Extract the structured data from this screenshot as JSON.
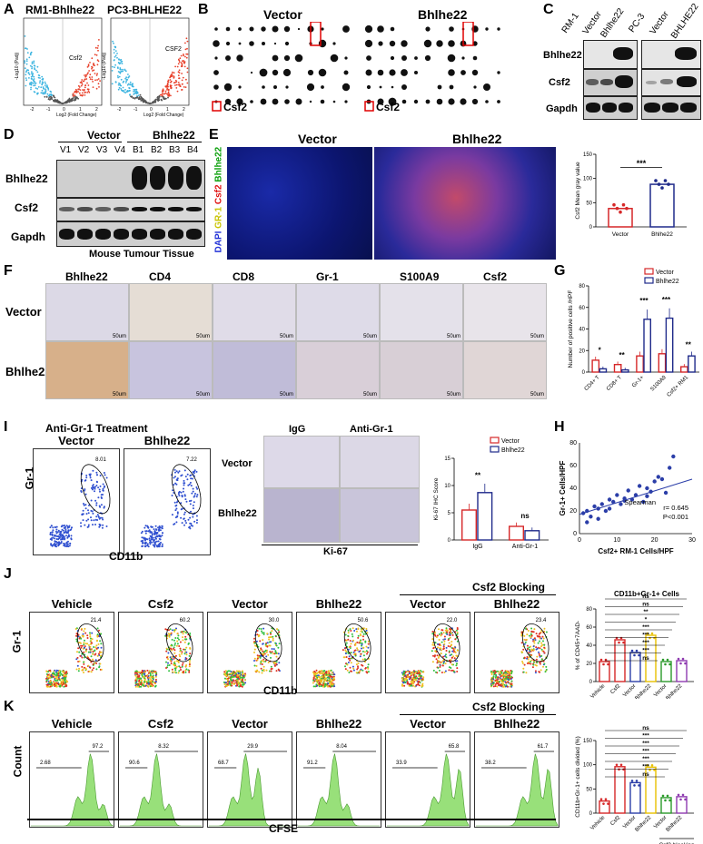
{
  "panels": {
    "A": {
      "label": "A",
      "title1": "RM1-Bhlhe22",
      "title2": "PC3-BHLHE22",
      "gene1": "Csf2",
      "gene2": "CSF2",
      "xlab": "Log2 (Fold Change)",
      "ylab": "-Log10 (Padj)",
      "xticks": [
        "-2",
        "-1",
        "0",
        "1",
        "2"
      ]
    },
    "B": {
      "label": "B",
      "title1": "Vector",
      "title2": "Bhlhe22",
      "key1": "Csf2",
      "key2": "Csf2"
    },
    "C": {
      "label": "C",
      "lanes": [
        "RM-1",
        "Vector",
        "Bhlhe22",
        "PC-3",
        "Vector",
        "BHLHE22"
      ],
      "rows": [
        "Bhlhe22",
        "Csf2",
        "Gapdh"
      ]
    },
    "D": {
      "label": "D",
      "group1": "Vector",
      "group2": "Bhlhe22",
      "lanes": [
        "V1",
        "V2",
        "V3",
        "V4",
        "B1",
        "B2",
        "B3",
        "B4"
      ],
      "rows": [
        "Bhlhe22",
        "Csf2",
        "Gapdh"
      ],
      "caption": "Mouse Tumour Tissue"
    },
    "E": {
      "label": "E",
      "title1": "Vector",
      "title2": "Bhlhe22",
      "stain_dapi": "DAPI",
      "stain_gr1": "GR-1",
      "stain_csf2": "Csf2",
      "stain_bhlhe22": "Bhlhe22",
      "sig": "***",
      "ylab": "Csf2 Mean gray value",
      "ticks": [
        "0",
        "50",
        "100",
        "150"
      ],
      "cats": [
        "Vector",
        "Bhlhe22"
      ]
    },
    "F": {
      "label": "F",
      "cols": [
        "Bhlhe22",
        "CD4",
        "CD8",
        "Gr-1",
        "S100A9",
        "Csf2"
      ],
      "rows": [
        "Vector",
        "Bhlhe22"
      ],
      "scale": "50um"
    },
    "G": {
      "label": "G",
      "legend": [
        "Vector",
        "Bhlhe22"
      ],
      "ylab": "Number of positive cells /HPF",
      "ticks": [
        "0",
        "20",
        "40",
        "60",
        "80"
      ],
      "cats": [
        "CD4+ T",
        "CD8+ T",
        "Gr-1+",
        "S100A9",
        "Csf2+ RM1"
      ],
      "sigs": [
        "*",
        "**",
        "***",
        "***",
        "**"
      ]
    },
    "H": {
      "label": "H",
      "ylab": "Gr-1+ Cells/HPF",
      "xlab": "Csf2+ RM-1 Cells/HPF",
      "stat_name": "Spearman",
      "r": "r= 0.645",
      "p": "P<0.001",
      "xticks": [
        "0",
        "10",
        "20",
        "30"
      ],
      "yticks": [
        "0",
        "20",
        "40",
        "60",
        "80"
      ]
    },
    "I": {
      "label": "I",
      "title": "Anti-Gr-1 Treatment",
      "flow_titles": [
        "Vector",
        "Bhlhe22"
      ],
      "gates": [
        "8.01",
        "7.22"
      ],
      "ylab": "Gr-1",
      "xlab": "CD11b",
      "ihc_cols": [
        "IgG",
        "Anti-Gr-1"
      ],
      "ihc_rows": [
        "Vector",
        "Bhlhe22"
      ],
      "ihc_caption": "Ki-67",
      "legend": [
        "Vector",
        "Bhlhe22"
      ],
      "bar_ylab": "Ki-67 IHC Score",
      "ticks": [
        "0",
        "5",
        "10",
        "15"
      ],
      "cats": [
        "IgG",
        "Anti-Gr-1"
      ],
      "sigs": [
        "**",
        "ns"
      ]
    },
    "J": {
      "label": "J",
      "titles": [
        "Vehicle",
        "Csf2",
        "Vector",
        "Bhlhe22",
        "Vector",
        "Bhlhe22"
      ],
      "block": "Csf2 Blocking",
      "gates": [
        "21.4",
        "60.2",
        "30.0",
        "50.6",
        "22.0",
        "23.4"
      ],
      "ylab": "Gr-1",
      "xlab": "CD11b",
      "bar_title": "CD11b+Gr-1+ Cells",
      "bar_ylab": "% of CD45+7AAD-",
      "ticks": [
        "0",
        "20",
        "40",
        "60",
        "80"
      ],
      "cats": [
        "Vehicle",
        "Csf2",
        "Vector",
        "Bhlhe22",
        "Vector",
        "Bhlhe22"
      ],
      "bar_block": "Csf2 blocking",
      "sigs": [
        "ns",
        "ns",
        "**",
        "*",
        "***",
        "***",
        "***",
        "***",
        "ns"
      ]
    },
    "K": {
      "label": "K",
      "titles": [
        "Vehicle",
        "Csf2",
        "Vector",
        "Bhlhe22",
        "Vector",
        "Bhlhe22"
      ],
      "block": "Csf2 Blocking",
      "gate_lo": [
        "2.68",
        "90.6",
        "68.7",
        "91.2",
        "33.9",
        "38.2"
      ],
      "gate_hi": [
        "97.2",
        "8.32",
        "29.9",
        "8.04",
        "65.8",
        "61.7"
      ],
      "ylab": "Count",
      "xlab": "CFSE",
      "bar_ylab": "CD11b+Gr-1+ cells divided (%)",
      "ticks": [
        "0",
        "50",
        "100",
        "150"
      ],
      "cats": [
        "Vehicle",
        "Csf2",
        "Vector",
        "Bhlhe22",
        "Vector",
        "Bhlhe22"
      ],
      "bar_block": "Csf2 blocking",
      "sigs": [
        "ns",
        "***",
        "***",
        "***",
        "***",
        "***",
        "ns"
      ]
    }
  },
  "chart_data": [
    {
      "type": "bar",
      "panel": "E",
      "categories": [
        "Vector",
        "Bhlhe22"
      ],
      "values": [
        38,
        88
      ],
      "ylim": [
        0,
        150
      ],
      "ylabel": "Csf2 Mean gray value"
    },
    {
      "type": "bar",
      "panel": "G",
      "categories": [
        "CD4+ T",
        "CD8+ T",
        "Gr-1+",
        "S100A9",
        "Csf2+ RM1"
      ],
      "series": [
        {
          "name": "Vector",
          "values": [
            11,
            7,
            15,
            17,
            5
          ]
        },
        {
          "name": "Bhlhe22",
          "values": [
            3,
            2,
            49,
            50,
            15
          ]
        }
      ],
      "ylim": [
        0,
        80
      ],
      "ylabel": "Number of positive cells /HPF"
    },
    {
      "type": "scatter",
      "panel": "H",
      "x": [
        1,
        2,
        3,
        4,
        5,
        6,
        7,
        8,
        9,
        10,
        11,
        12,
        13,
        14,
        15,
        16,
        17,
        18,
        19,
        20,
        21,
        22,
        24,
        25,
        2,
        5,
        8,
        12,
        18,
        23
      ],
      "y": [
        18,
        20,
        15,
        24,
        22,
        26,
        20,
        30,
        28,
        34,
        26,
        31,
        38,
        30,
        34,
        42,
        28,
        40,
        37,
        46,
        50,
        48,
        58,
        68,
        10,
        13,
        22,
        29,
        33,
        36
      ],
      "xlim": [
        0,
        30
      ],
      "ylim": [
        0,
        80
      ],
      "xlabel": "Csf2+ RM-1 Cells/HPF",
      "ylabel": "Gr-1+ Cells/HPF"
    },
    {
      "type": "bar",
      "panel": "I",
      "categories": [
        "IgG",
        "Anti-Gr-1"
      ],
      "series": [
        {
          "name": "Vector",
          "values": [
            5.5,
            2.5
          ]
        },
        {
          "name": "Bhlhe22",
          "values": [
            8.7,
            1.7
          ]
        }
      ],
      "ylim": [
        0,
        15
      ],
      "ylabel": "Ki-67 IHC Score"
    },
    {
      "type": "bar",
      "panel": "J",
      "categories": [
        "Vehicle",
        "Csf2",
        "Vector",
        "Bhlhe22",
        "Vector",
        "Bhlhe22"
      ],
      "values": [
        22,
        46,
        32,
        51,
        22,
        23
      ],
      "ylim": [
        0,
        80
      ],
      "ylabel": "% of CD45+7AAD-"
    },
    {
      "type": "bar",
      "panel": "K",
      "categories": [
        "Vehicle",
        "Csf2",
        "Vector",
        "Bhlhe22",
        "Vector",
        "Bhlhe22"
      ],
      "values": [
        25,
        96,
        63,
        95,
        32,
        34
      ],
      "ylim": [
        0,
        150
      ],
      "ylabel": "CD11b+Gr-1+ cells divided (%)"
    }
  ],
  "colors": {
    "vector": "#d62728",
    "bhlhe22": "#1f2a8a",
    "flow_green": "#98e07a"
  }
}
